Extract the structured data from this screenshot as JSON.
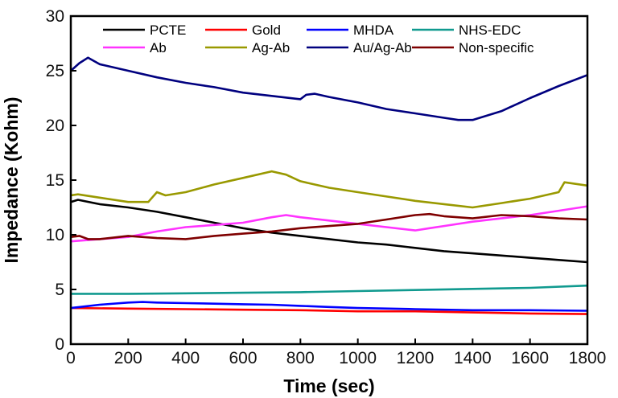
{
  "chart_data": {
    "type": "line",
    "xlabel": "Time (sec)",
    "ylabel": "Impedance (Kohm)",
    "xlim": [
      0,
      1800
    ],
    "ylim": [
      0,
      30
    ],
    "x_ticks": [
      0,
      200,
      400,
      600,
      800,
      1000,
      1200,
      1400,
      1600,
      1800
    ],
    "y_ticks": [
      0,
      5,
      10,
      15,
      20,
      25,
      30
    ],
    "grid": false,
    "legend": "top, inside, 2 rows x 4 columns",
    "series": [
      {
        "name": "PCTE",
        "color": "#000000",
        "x": [
          0,
          25,
          100,
          200,
          300,
          400,
          500,
          600,
          700,
          800,
          900,
          1000,
          1100,
          1200,
          1300,
          1400,
          1500,
          1600,
          1700,
          1800
        ],
        "y": [
          13.0,
          13.2,
          12.8,
          12.5,
          12.1,
          11.6,
          11.1,
          10.6,
          10.2,
          9.9,
          9.6,
          9.3,
          9.1,
          8.8,
          8.5,
          8.3,
          8.1,
          7.9,
          7.7,
          7.5
        ]
      },
      {
        "name": "Gold",
        "color": "#ff0000",
        "x": [
          0,
          200,
          400,
          600,
          800,
          1000,
          1200,
          1400,
          1600,
          1800
        ],
        "y": [
          3.3,
          3.25,
          3.2,
          3.15,
          3.1,
          3.0,
          3.0,
          2.9,
          2.8,
          2.75
        ]
      },
      {
        "name": "MHDA",
        "color": "#0000ff",
        "x": [
          0,
          100,
          200,
          250,
          300,
          400,
          500,
          600,
          700,
          800,
          900,
          1000,
          1200,
          1400,
          1600,
          1800
        ],
        "y": [
          3.3,
          3.6,
          3.8,
          3.85,
          3.8,
          3.75,
          3.7,
          3.65,
          3.6,
          3.5,
          3.4,
          3.3,
          3.2,
          3.1,
          3.1,
          3.05
        ]
      },
      {
        "name": "NHS-EDC",
        "color": "#109a8f",
        "x": [
          0,
          200,
          400,
          600,
          800,
          1000,
          1200,
          1400,
          1600,
          1800
        ],
        "y": [
          4.6,
          4.6,
          4.65,
          4.7,
          4.75,
          4.85,
          4.95,
          5.05,
          5.15,
          5.35
        ]
      },
      {
        "name": "Ab",
        "color": "#ff33ff",
        "x": [
          0,
          100,
          200,
          300,
          400,
          500,
          600,
          700,
          750,
          800,
          900,
          1000,
          1100,
          1200,
          1250,
          1300,
          1400,
          1500,
          1600,
          1700,
          1800
        ],
        "y": [
          9.4,
          9.6,
          9.8,
          10.3,
          10.7,
          10.9,
          11.1,
          11.6,
          11.8,
          11.6,
          11.3,
          11.0,
          10.7,
          10.4,
          10.6,
          10.8,
          11.2,
          11.5,
          11.8,
          12.2,
          12.6
        ]
      },
      {
        "name": "Ag-Ab",
        "color": "#999900",
        "x": [
          0,
          25,
          100,
          200,
          270,
          300,
          330,
          400,
          500,
          600,
          700,
          750,
          800,
          900,
          1000,
          1100,
          1200,
          1300,
          1400,
          1500,
          1600,
          1700,
          1720,
          1800
        ],
        "y": [
          13.6,
          13.7,
          13.4,
          13.0,
          13.0,
          13.9,
          13.6,
          13.9,
          14.6,
          15.2,
          15.8,
          15.5,
          14.9,
          14.3,
          13.9,
          13.5,
          13.1,
          12.8,
          12.5,
          12.9,
          13.3,
          13.9,
          14.8,
          14.5
        ]
      },
      {
        "name": "Au/Ag-Ab",
        "color": "#00007f",
        "x": [
          0,
          30,
          60,
          100,
          200,
          300,
          400,
          500,
          600,
          700,
          800,
          820,
          850,
          900,
          1000,
          1100,
          1200,
          1300,
          1350,
          1400,
          1450,
          1500,
          1600,
          1700,
          1800
        ],
        "y": [
          25.0,
          25.7,
          26.2,
          25.6,
          25.0,
          24.4,
          23.9,
          23.5,
          23.0,
          22.7,
          22.4,
          22.8,
          22.9,
          22.6,
          22.1,
          21.5,
          21.1,
          20.7,
          20.5,
          20.5,
          20.9,
          21.3,
          22.5,
          23.6,
          24.6
        ]
      },
      {
        "name": "Non-specific",
        "color": "#7f0000",
        "x": [
          0,
          30,
          60,
          100,
          200,
          300,
          400,
          500,
          600,
          700,
          800,
          900,
          1000,
          1100,
          1200,
          1250,
          1300,
          1400,
          1500,
          1600,
          1700,
          1800
        ],
        "y": [
          9.8,
          9.9,
          9.6,
          9.6,
          9.9,
          9.7,
          9.6,
          9.9,
          10.1,
          10.3,
          10.6,
          10.8,
          11.0,
          11.4,
          11.8,
          11.9,
          11.7,
          11.5,
          11.8,
          11.7,
          11.5,
          11.4
        ]
      }
    ]
  }
}
